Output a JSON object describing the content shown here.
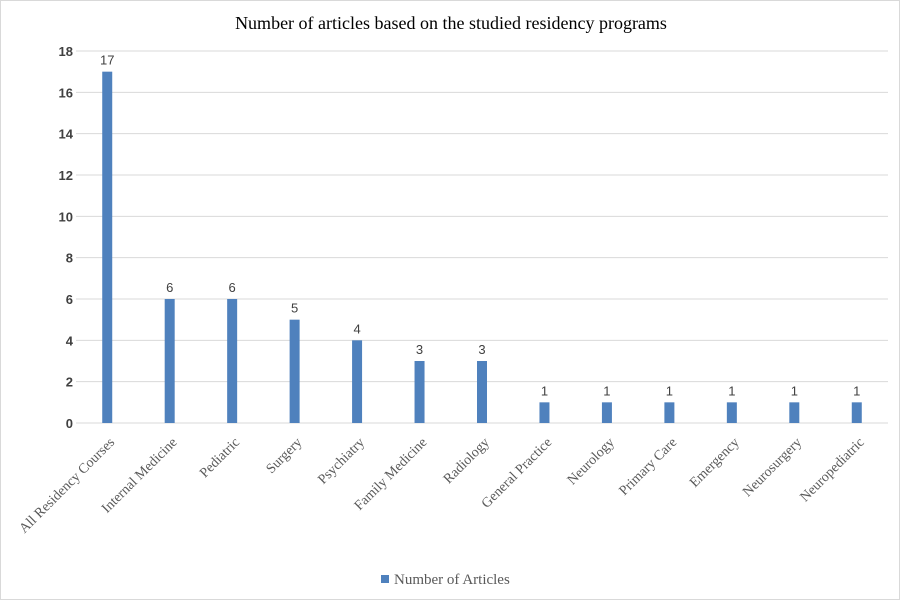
{
  "chart_data": {
    "type": "bar",
    "title": "Number of articles based on the studied residency programs",
    "categories": [
      "All Residency Courses",
      "Internal Medicine",
      "Pediatric",
      "Surgery",
      "Psychiatry",
      "Family Medicine",
      "Radiology",
      "General Practice",
      "Neurology",
      "Primary Care",
      "Emergency",
      "Neurosurgery",
      "Neuropediatric"
    ],
    "series": [
      {
        "name": "Number of Articles",
        "values": [
          17,
          6,
          6,
          5,
          4,
          3,
          3,
          1,
          1,
          1,
          1,
          1,
          1
        ]
      }
    ],
    "ylim": [
      0,
      18
    ],
    "yticks": [
      0,
      2,
      4,
      6,
      8,
      10,
      12,
      14,
      16,
      18
    ],
    "grid": true,
    "legend_position": "bottom",
    "colors": {
      "bar": "#4f81bd"
    },
    "data_labels": true
  }
}
